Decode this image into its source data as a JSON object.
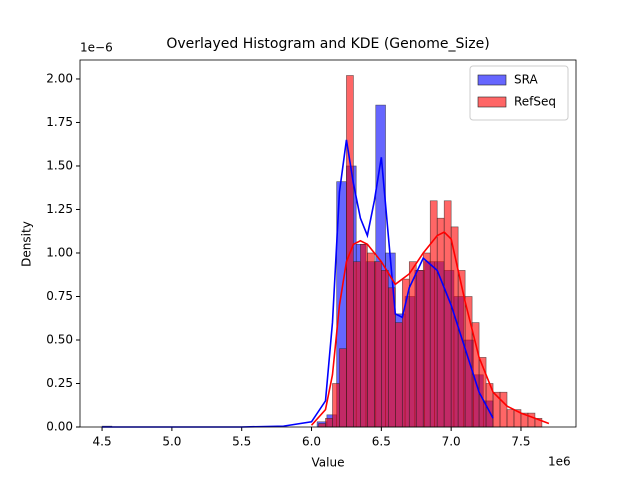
{
  "chart_data": {
    "type": "histogram",
    "title": "Overlayed Histogram and KDE (Genome_Size)",
    "xlabel": "Value",
    "ylabel": "Density",
    "x_offset_label": "1e6",
    "y_offset_label": "1e−6",
    "xlim": [
      4.342,
      7.894
    ],
    "ylim": [
      0,
      2.109
    ],
    "xticks": [
      4.5,
      {
        "value": 5,
        "label": "5.0"
      },
      5.5,
      {
        "value": 6,
        "label": "6.0"
      },
      6.5,
      {
        "value": 7,
        "label": "7.0"
      },
      7.5
    ],
    "yticks": [
      {
        "value": 0,
        "label": "0.00"
      },
      {
        "value": 0.25,
        "label": "0.25"
      },
      {
        "value": 0.5,
        "label": "0.50"
      },
      {
        "value": 0.75,
        "label": "0.75"
      },
      {
        "value": 1,
        "label": "1.00"
      },
      {
        "value": 1.25,
        "label": "1.25"
      },
      {
        "value": 1.5,
        "label": "1.50"
      },
      {
        "value": 1.75,
        "label": "1.75"
      },
      {
        "value": 2,
        "label": "2.00"
      }
    ],
    "legend": "upper right",
    "series": [
      {
        "name": "SRA",
        "color": "#0000ff",
        "bins": [
          4.5,
          4.57,
          4.64,
          4.71,
          4.78,
          4.85,
          4.92,
          4.99,
          5.06,
          5.13,
          5.2,
          5.27,
          5.34,
          5.41,
          5.48,
          5.55,
          5.62,
          5.69,
          5.76,
          5.83,
          5.9,
          5.97,
          6.04,
          6.11,
          6.18,
          6.25,
          6.32,
          6.39,
          6.46,
          6.53,
          6.6,
          6.67,
          6.74,
          6.81,
          6.88,
          6.95,
          7.02,
          7.09,
          7.16,
          7.23,
          7.3
        ],
        "values": [
          0.005,
          0,
          0,
          0,
          0,
          0,
          0,
          0,
          0,
          0,
          0,
          0,
          0,
          0,
          0,
          0,
          0,
          0,
          0,
          0,
          0,
          0,
          0.03,
          0.07,
          1.41,
          1.5,
          1.05,
          0.95,
          1.85,
          1.0,
          0.65,
          0.75,
          0.9,
          0.95,
          0.95,
          0.9,
          0.75,
          0.5,
          0.3,
          0.15
        ],
        "kde_x": [
          4.5,
          5.0,
          5.5,
          5.8,
          6.0,
          6.1,
          6.15,
          6.2,
          6.25,
          6.3,
          6.35,
          6.4,
          6.45,
          6.5,
          6.55,
          6.6,
          6.65,
          6.7,
          6.8,
          6.9,
          7.0,
          7.1,
          7.2,
          7.3
        ],
        "kde_y": [
          0,
          0,
          0,
          0.005,
          0.03,
          0.15,
          0.6,
          1.35,
          1.65,
          1.4,
          1.2,
          1.1,
          1.3,
          1.55,
          1.1,
          0.65,
          0.63,
          0.8,
          0.97,
          0.9,
          0.7,
          0.45,
          0.2,
          0.05
        ]
      },
      {
        "name": "RefSeq",
        "color": "#ff0000",
        "bins": [
          6.05,
          6.1,
          6.15,
          6.2,
          6.25,
          6.3,
          6.35,
          6.4,
          6.45,
          6.5,
          6.55,
          6.6,
          6.65,
          6.7,
          6.75,
          6.8,
          6.85,
          6.9,
          6.95,
          7.0,
          7.05,
          7.1,
          7.15,
          7.2,
          7.25,
          7.3,
          7.35,
          7.4,
          7.45,
          7.5,
          7.55,
          7.6,
          7.65
        ],
        "values": [
          0.02,
          0.05,
          0.25,
          0.45,
          2.02,
          0.95,
          1.05,
          1.0,
          0.95,
          0.9,
          0.8,
          0.6,
          0.85,
          0.95,
          0.9,
          1.0,
          1.3,
          1.2,
          1.3,
          1.15,
          0.9,
          0.75,
          0.6,
          0.4,
          0.25,
          0.2,
          0.2,
          0.1,
          0.1,
          0.08,
          0.08,
          0.05
        ],
        "kde_x": [
          6.0,
          6.1,
          6.15,
          6.2,
          6.25,
          6.3,
          6.35,
          6.4,
          6.5,
          6.6,
          6.7,
          6.8,
          6.9,
          6.95,
          7.0,
          7.1,
          7.2,
          7.3,
          7.4,
          7.5,
          7.6,
          7.7
        ],
        "kde_y": [
          0.01,
          0.1,
          0.3,
          0.7,
          0.95,
          1.05,
          1.07,
          1.05,
          0.95,
          0.82,
          0.88,
          1.0,
          1.1,
          1.12,
          1.08,
          0.72,
          0.4,
          0.2,
          0.12,
          0.08,
          0.05,
          0.02
        ]
      }
    ]
  }
}
